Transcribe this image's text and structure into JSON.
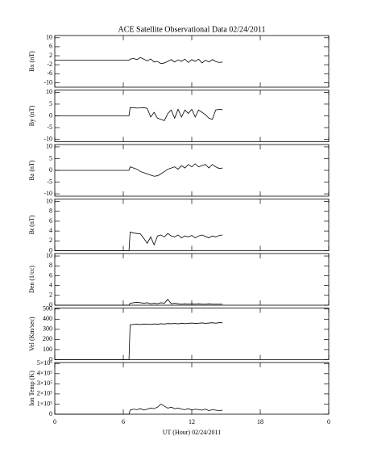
{
  "chart_data": [
    {
      "type": "line",
      "title": "ACE Satellite Observational Data   02/24/2011",
      "ylabel": "Bx (nT)",
      "x": [
        0,
        6.5,
        6.6,
        6.9,
        7.2,
        7.5,
        7.8,
        8.1,
        8.4,
        8.7,
        9.0,
        9.3,
        9.6,
        9.9,
        10.2,
        10.5,
        10.8,
        11.1,
        11.4,
        11.7,
        12.0,
        12.3,
        12.6,
        12.9,
        13.2,
        13.5,
        13.8,
        14.1,
        14.4,
        14.7
      ],
      "values": [
        0,
        0,
        0.5,
        0.8,
        0.3,
        1.2,
        0.5,
        -0.3,
        0.6,
        -0.8,
        -0.5,
        -1.5,
        -1.2,
        -0.5,
        0.3,
        -0.8,
        0.2,
        -0.5,
        0.5,
        -1.0,
        0.3,
        -0.5,
        0.5,
        -1.2,
        0.0,
        -0.8,
        0.3,
        -0.6,
        -1.0,
        -0.8
      ],
      "color": "#000000",
      "xlim": [
        0,
        24
      ],
      "ylim": [
        -12,
        11
      ],
      "yticks": [
        10,
        6,
        2,
        -2,
        -6,
        -10
      ]
    },
    {
      "type": "line",
      "ylabel": "By (nT)",
      "x": [
        0,
        6.5,
        6.6,
        6.9,
        7.2,
        7.5,
        7.8,
        8.1,
        8.4,
        8.7,
        9.0,
        9.3,
        9.6,
        9.9,
        10.2,
        10.5,
        10.8,
        11.1,
        11.4,
        11.7,
        12.0,
        12.3,
        12.6,
        12.9,
        13.2,
        13.5,
        13.8,
        14.1,
        14.4,
        14.7
      ],
      "values": [
        0,
        0,
        3.5,
        3.5,
        3.3,
        3.4,
        3.5,
        3.2,
        -0.5,
        1.5,
        -1.0,
        -1.5,
        -2.0,
        1.0,
        2.5,
        -1.0,
        2.8,
        -0.5,
        2.5,
        1.0,
        2.8,
        -0.5,
        2.5,
        1.5,
        0.5,
        -1.0,
        -1.5,
        2.5,
        2.8,
        2.6
      ],
      "color": "#000000",
      "xlim": [
        0,
        24
      ],
      "ylim": [
        -11,
        11
      ],
      "yticks": [
        10,
        5,
        0,
        -5,
        -10
      ]
    },
    {
      "type": "line",
      "ylabel": "Bz (nT)",
      "x": [
        0,
        6.5,
        6.6,
        6.9,
        7.2,
        7.5,
        7.8,
        8.1,
        8.4,
        8.7,
        9.0,
        9.3,
        9.6,
        9.9,
        10.2,
        10.5,
        10.8,
        11.1,
        11.4,
        11.7,
        12.0,
        12.3,
        12.6,
        12.9,
        13.2,
        13.5,
        13.8,
        14.1,
        14.4,
        14.7
      ],
      "values": [
        0,
        0,
        1.5,
        1.0,
        0.5,
        -0.5,
        -1.0,
        -1.5,
        -2.0,
        -2.5,
        -2.3,
        -1.5,
        -0.5,
        0.5,
        1.0,
        1.5,
        0.5,
        2.0,
        1.0,
        2.5,
        1.5,
        2.8,
        1.5,
        2.0,
        2.5,
        1.0,
        2.5,
        1.5,
        0.8,
        1.0
      ],
      "color": "#000000",
      "xlim": [
        0,
        24
      ],
      "ylim": [
        -11,
        11
      ],
      "yticks": [
        10,
        5,
        0,
        -5,
        -10
      ]
    },
    {
      "type": "line",
      "ylabel": "Bt (nT)",
      "x": [
        0,
        6.5,
        6.6,
        6.9,
        7.2,
        7.5,
        7.8,
        8.1,
        8.4,
        8.7,
        9.0,
        9.3,
        9.6,
        9.9,
        10.2,
        10.5,
        10.8,
        11.1,
        11.4,
        11.7,
        12.0,
        12.3,
        12.6,
        12.9,
        13.2,
        13.5,
        13.8,
        14.1,
        14.4,
        14.7
      ],
      "values": [
        0,
        0,
        3.8,
        3.6,
        3.5,
        3.4,
        2.5,
        1.5,
        2.8,
        1.2,
        3.0,
        3.2,
        2.8,
        3.5,
        3.0,
        2.8,
        3.2,
        2.6,
        3.0,
        2.8,
        3.1,
        2.6,
        3.0,
        3.2,
        2.9,
        2.6,
        3.0,
        2.8,
        3.1,
        3.2
      ],
      "color": "#000000",
      "xlim": [
        0,
        24
      ],
      "ylim": [
        0,
        10.5
      ],
      "yticks": [
        0,
        2,
        4,
        6,
        8,
        10
      ]
    },
    {
      "type": "line",
      "ylabel": "Den (1/cc)",
      "x": [
        0,
        6.5,
        6.6,
        6.9,
        7.2,
        7.5,
        7.8,
        8.1,
        8.4,
        8.7,
        9.0,
        9.3,
        9.6,
        9.9,
        10.2,
        10.5,
        10.8,
        11.1,
        11.4,
        11.7,
        12.0,
        12.3,
        12.6,
        12.9,
        13.2,
        13.5,
        13.8,
        14.1,
        14.4,
        14.7
      ],
      "values": [
        0,
        0,
        0.4,
        0.5,
        0.6,
        0.5,
        0.4,
        0.5,
        0.3,
        0.4,
        0.3,
        0.5,
        0.4,
        1.2,
        0.3,
        0.4,
        0.3,
        0.2,
        0.3,
        0.2,
        0.3,
        0.2,
        0.3,
        0.2,
        0.2,
        0.3,
        0.2,
        0.2,
        0.2,
        0.2
      ],
      "color": "#000000",
      "xlim": [
        0,
        24
      ],
      "ylim": [
        0,
        10.5
      ],
      "yticks": [
        0,
        2,
        4,
        6,
        8,
        10
      ]
    },
    {
      "type": "line",
      "ylabel": "Vel (Km/sec)",
      "x": [
        0,
        6.5,
        6.6,
        6.9,
        7.2,
        7.5,
        7.8,
        8.1,
        8.4,
        8.7,
        9.0,
        9.3,
        9.6,
        9.9,
        10.2,
        10.5,
        10.8,
        11.1,
        11.4,
        11.7,
        12.0,
        12.3,
        12.6,
        12.9,
        13.2,
        13.5,
        13.8,
        14.1,
        14.4,
        14.7
      ],
      "values": [
        0,
        0,
        345,
        348,
        350,
        347,
        352,
        350,
        348,
        353,
        350,
        355,
        352,
        357,
        355,
        358,
        354,
        360,
        356,
        358,
        362,
        358,
        360,
        363,
        359,
        362,
        365,
        360,
        366,
        364
      ],
      "color": "#000000",
      "xlim": [
        0,
        24
      ],
      "ylim": [
        0,
        510
      ],
      "yticks": [
        0,
        100,
        200,
        300,
        400,
        500
      ]
    },
    {
      "type": "line",
      "ylabel": "Ion Temp (K)",
      "xlabel": "UT (Hour)   02/24/2011",
      "x": [
        0,
        6.5,
        6.6,
        6.9,
        7.2,
        7.5,
        7.8,
        8.1,
        8.4,
        8.7,
        9.0,
        9.3,
        9.6,
        9.9,
        10.2,
        10.5,
        10.8,
        11.1,
        11.4,
        11.7,
        12.0,
        12.3,
        12.6,
        12.9,
        13.2,
        13.5,
        13.8,
        14.1,
        14.4,
        14.7
      ],
      "values": [
        0,
        0,
        40000,
        50000,
        45000,
        55000,
        40000,
        50000,
        60000,
        55000,
        70000,
        100000,
        80000,
        60000,
        70000,
        55000,
        60000,
        50000,
        45000,
        55000,
        40000,
        50000,
        45000,
        40000,
        50000,
        35000,
        45000,
        40000,
        35000,
        40000
      ],
      "color": "#000000",
      "xlim": [
        0,
        24
      ],
      "ylim": [
        0,
        510000
      ],
      "yticks": [
        0,
        {
          "value": 100000,
          "label": "1×10⁵"
        },
        {
          "value": 200000,
          "label": "2×10⁵"
        },
        {
          "value": 300000,
          "label": "3×10⁵"
        },
        {
          "value": 400000,
          "label": "4×10⁵"
        },
        {
          "value": 500000,
          "label": "5×10⁵"
        }
      ],
      "xticks": [
        0,
        6,
        12,
        18,
        {
          "value": 24,
          "label": "0"
        }
      ]
    }
  ]
}
